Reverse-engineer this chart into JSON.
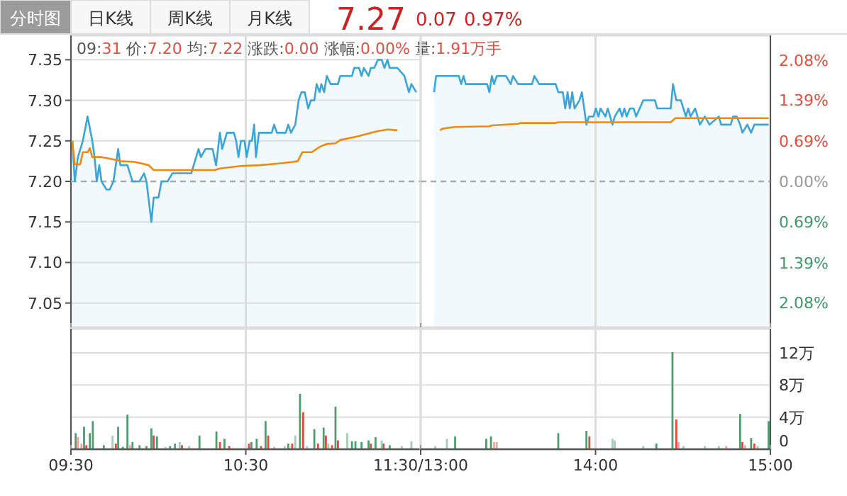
{
  "chart_data": [
    {
      "type": "other",
      "annotations": [
        "分时图",
        "日K线",
        "周K线",
        "月K线",
        "7.27",
        "0.07",
        "0.97%"
      ]
    },
    {
      "type": "line",
      "subtitle": "09:31 价:7.20 均:7.22 涨跌:0.00 涨幅:0.00% 量:1.91万手",
      "xlim": [
        9.5,
        11.5
      ],
      "xticks": [
        {
          "value": 9.5,
          "label": null
        },
        {
          "value": 10.5,
          "label": null
        },
        {
          "value": 11.5,
          "label": null
        }
      ],
      "ylim": [
        7.02,
        7.38
      ],
      "yticks": [
        7.05,
        {
          "value": 7.1,
          "label": "7.10"
        },
        7.15,
        {
          "value": 7.2,
          "label": "7.20"
        },
        7.25,
        {
          "value": 7.3,
          "label": "7.30"
        },
        7.35
      ],
      "tick_labels": "y",
      "grid": "y",
      "ref_lines": [
        {
          "axis": "y",
          "value": 7.2,
          "line_style": "dashed",
          "color": "#aaaaaa"
        },
        {
          "axis": "x",
          "value": 10.5,
          "color": "#dddddd"
        }
      ],
      "series": [
        {
          "type": "area",
          "color": "#3aa5d6",
          "x": [
            9.508,
            9.522,
            9.54,
            9.568,
            9.595,
            9.622,
            9.635,
            9.648,
            9.662,
            9.675,
            9.703,
            9.722,
            9.743,
            9.77,
            9.783,
            9.823,
            9.852,
            9.892,
            9.918,
            9.932,
            9.96,
            9.973,
            10.0,
            10.018,
            10.053,
            10.08,
            10.188,
            10.23,
            10.243,
            10.27,
            10.31,
            10.33,
            10.352,
            10.365,
            10.392,
            10.432,
            10.445,
            10.458,
            10.472,
            10.493,
            10.505,
            10.522,
            10.535,
            10.548,
            10.558,
            10.575,
            10.648,
            10.662,
            10.678,
            10.728,
            10.743,
            10.758,
            10.783,
            10.802,
            10.818,
            10.837,
            10.857,
            10.872,
            10.892,
            10.905,
            10.922,
            10.932,
            10.948,
            10.963,
            10.985,
            11.027,
            11.04,
            11.107,
            11.12,
            11.148,
            11.162,
            11.175,
            11.202,
            11.215,
            11.235,
            11.255,
            11.277,
            11.293,
            11.31,
            11.323,
            11.367,
            11.407,
            11.433,
            11.447,
            11.475
          ],
          "values": [
            7.25,
            7.2,
            7.23,
            7.25,
            7.28,
            7.25,
            7.23,
            7.2,
            7.22,
            7.2,
            7.19,
            7.19,
            7.2,
            7.24,
            7.22,
            7.22,
            7.2,
            7.2,
            7.21,
            7.2,
            7.15,
            7.18,
            7.18,
            7.2,
            7.2,
            7.21,
            7.21,
            7.24,
            7.23,
            7.24,
            7.24,
            7.22,
            7.26,
            7.24,
            7.26,
            7.26,
            7.25,
            7.23,
            7.25,
            7.25,
            7.23,
            7.25,
            7.25,
            7.27,
            7.23,
            7.26,
            7.26,
            7.27,
            7.26,
            7.26,
            7.27,
            7.26,
            7.27,
            7.3,
            7.31,
            7.31,
            7.29,
            7.3,
            7.3,
            7.32,
            7.31,
            7.32,
            7.31,
            7.33,
            7.32,
            7.32,
            7.33,
            7.33,
            7.34,
            7.34,
            7.33,
            7.34,
            7.33,
            7.34,
            7.34,
            7.35,
            7.35,
            7.34,
            7.35,
            7.34,
            7.34,
            7.33,
            7.31,
            7.32,
            7.31
          ]
        },
        {
          "type": "line",
          "color": "#f0890f",
          "x": [
            9.508,
            9.522,
            9.553,
            9.568,
            9.595,
            9.608,
            9.622,
            9.675,
            9.743,
            9.783,
            9.865,
            9.945,
            9.973,
            10.323,
            10.352,
            10.472,
            10.58,
            10.688,
            10.77,
            10.797,
            10.823,
            10.878,
            10.918,
            10.958,
            11.013,
            11.04,
            11.148,
            11.255,
            11.31,
            11.367
          ],
          "values": [
            7.25,
            7.221,
            7.221,
            7.236,
            7.236,
            7.241,
            7.23,
            7.23,
            7.227,
            7.225,
            7.224,
            7.22,
            7.214,
            7.214,
            7.216,
            7.219,
            7.22,
            7.222,
            7.224,
            7.225,
            7.236,
            7.236,
            7.242,
            7.246,
            7.247,
            7.251,
            7.256,
            7.262,
            7.264,
            7.263
          ]
        }
      ]
    },
    {
      "type": "line",
      "xlim": [
        13,
        15
      ],
      "xticks": [
        {
          "value": 13,
          "label": null
        },
        {
          "value": 14,
          "label": null
        },
        {
          "value": 15,
          "label": null
        }
      ],
      "ylim": [
        7.02,
        7.38
      ],
      "y2lim": [
        -2.5,
        2.5
      ],
      "y2ticks": [
        {
          "value": 2.08,
          "label": "2.08%"
        },
        {
          "value": 1.39,
          "label": "1.39%"
        },
        {
          "value": 0.69,
          "label": "0.69%"
        },
        {
          "value": 0,
          "label": "0.00%"
        },
        {
          "value": -0.69,
          "label": "0.69%"
        },
        {
          "value": -1.39,
          "label": "1.39%"
        },
        {
          "value": -2.08,
          "label": "2.08%"
        }
      ],
      "tick_labels": false,
      "grid": "y",
      "ref_lines": [
        {
          "axis": "y",
          "value": 7.2,
          "line_style": "dashed",
          "color": "#aaaaaa"
        },
        {
          "axis": "x",
          "value": 14,
          "color": "#dddddd"
        }
      ],
      "series": [
        {
          "type": "area",
          "color": "#3aa5d6",
          "x": [
            13.077,
            13.088,
            13.218,
            13.232,
            13.245,
            13.258,
            13.38,
            13.393,
            13.407,
            13.42,
            13.435,
            13.488,
            13.515,
            13.528,
            13.557,
            13.637,
            13.65,
            13.678,
            13.772,
            13.787,
            13.813,
            13.827,
            13.84,
            13.853,
            13.867,
            13.88,
            13.908,
            13.922,
            13.948,
            13.962,
            13.988,
            14.002,
            14.017,
            14.028,
            14.057,
            14.07,
            14.097,
            14.11,
            14.138,
            14.152,
            14.165,
            14.178,
            14.197,
            14.218,
            14.232,
            14.273,
            14.34,
            14.353,
            14.43,
            14.443,
            14.462,
            14.488,
            14.517,
            14.53,
            14.543,
            14.57,
            14.597,
            14.625,
            14.652,
            14.705,
            14.718,
            14.773,
            14.787,
            14.808,
            14.827,
            14.84,
            14.868,
            14.89,
            14.908,
            14.99
          ],
          "values": [
            7.31,
            7.33,
            7.33,
            7.32,
            7.33,
            7.32,
            7.32,
            7.31,
            7.33,
            7.32,
            7.33,
            7.33,
            7.32,
            7.33,
            7.32,
            7.32,
            7.33,
            7.32,
            7.32,
            7.31,
            7.31,
            7.29,
            7.31,
            7.29,
            7.31,
            7.29,
            7.3,
            7.31,
            7.27,
            7.28,
            7.28,
            7.29,
            7.28,
            7.29,
            7.28,
            7.29,
            7.27,
            7.28,
            7.29,
            7.28,
            7.29,
            7.28,
            7.29,
            7.29,
            7.28,
            7.3,
            7.3,
            7.29,
            7.29,
            7.32,
            7.3,
            7.3,
            7.28,
            7.29,
            7.28,
            7.29,
            7.27,
            7.28,
            7.27,
            7.28,
            7.27,
            7.27,
            7.28,
            7.28,
            7.27,
            7.26,
            7.27,
            7.26,
            7.27,
            7.27
          ]
        },
        {
          "type": "line",
          "color": "#f0890f",
          "x": [
            13.11,
            13.125,
            13.192,
            13.393,
            13.407,
            13.557,
            13.57,
            13.772,
            13.787,
            14.43,
            14.457,
            14.99
          ],
          "values": [
            7.263,
            7.265,
            7.267,
            7.268,
            7.269,
            7.271,
            7.272,
            7.272,
            7.273,
            7.273,
            7.278,
            7.278
          ]
        }
      ]
    },
    {
      "type": "bar",
      "xlim": [
        9.5,
        11.5
      ],
      "xticks": [
        {
          "value": 9.5,
          "label": "09:30"
        },
        {
          "value": 10.5,
          "label": "10:30"
        },
        {
          "value": 11.5,
          "label": "11:30/13:00"
        }
      ],
      "ylim": [
        0,
        15
      ],
      "yticks": [
        0,
        4,
        8,
        12
      ],
      "tick_labels": "x",
      "grid": "y",
      "ref_lines": [
        {
          "axis": "x",
          "value": 10.5,
          "color": "#dddddd"
        }
      ],
      "x": [
        9.527,
        9.54,
        9.56,
        9.575,
        9.588,
        9.608,
        9.625,
        9.688,
        9.738,
        9.757,
        9.77,
        9.797,
        9.823,
        9.838,
        9.852,
        9.892,
        9.932,
        9.96,
        9.973,
        9.992,
        10.04,
        10.067,
        10.095,
        10.122,
        10.135,
        10.175,
        10.235,
        10.332,
        10.352,
        10.378,
        10.405,
        10.518,
        10.532,
        10.562,
        10.587,
        10.613,
        10.628,
        10.662,
        10.722,
        10.743,
        10.765,
        10.783,
        10.81,
        10.828,
        10.85,
        10.892,
        10.913,
        10.945,
        10.958,
        10.972,
        10.993,
        11.013,
        11.027,
        11.08,
        11.107,
        11.127,
        11.162,
        11.202,
        11.215,
        11.242,
        11.277,
        11.288,
        11.323,
        11.392,
        11.447
      ],
      "values": [
        2.0,
        1.5,
        0.7,
        2.8,
        0.5,
        2.0,
        3.5,
        0.5,
        1.7,
        0.7,
        2.8,
        0.3,
        4.3,
        0.5,
        0.9,
        0.5,
        0.4,
        2.6,
        1.7,
        1.6,
        0.3,
        0.4,
        0.7,
        0.9,
        0.5,
        0.4,
        1.7,
        2.2,
        0.9,
        1.3,
        0.4,
        0.7,
        0.9,
        1.3,
        0.4,
        3.5,
        1.7,
        0.3,
        0.4,
        0.7,
        0.7,
        1.7,
        6.9,
        4.6,
        0.4,
        2.5,
        0.7,
        2.7,
        1.7,
        0.7,
        0.5,
        5.3,
        1.1,
        2.0,
        1.0,
        1.0,
        0.9,
        1.1,
        0.7,
        1.5,
        1.1,
        0.7,
        0.5,
        0.4,
        1.0
      ],
      "colors": [
        "#4f9d6e",
        "#f3a39b",
        "#f3a39b",
        "#4f9d6e",
        "#e04a3f",
        "#4f9d6e",
        "#4f9d6e",
        "#4f9d6e",
        "#a3cdb5",
        "#e04a3f",
        "#4f9d6e",
        "#4f9d6e",
        "#4f9d6e",
        "#f3a39b",
        "#4f9d6e",
        "#4f9d6e",
        "#4f9d6e",
        "#4f9d6e",
        "#e04a3f",
        "#4f9d6e",
        "#a3cdb5",
        "#4f9d6e",
        "#4f9d6e",
        "#a3cdb5",
        "#e04a3f",
        "#a3cdb5",
        "#4f9d6e",
        "#4f9d6e",
        "#e04a3f",
        "#4f9d6e",
        "#e04a3f",
        "#e04a3f",
        "#4f9d6e",
        "#4f9d6e",
        "#e04a3f",
        "#4f9d6e",
        "#e04a3f",
        "#a3cdb5",
        "#a3cdb5",
        "#4f9d6e",
        "#e04a3f",
        "#a3cdb5",
        "#4f9d6e",
        "#e04a3f",
        "#a3cdb5",
        "#4f9d6e",
        "#e04a3f",
        "#4f9d6e",
        "#e04a3f",
        "#a3cdb5",
        "#e04a3f",
        "#4f9d6e",
        "#e04a3f",
        "#a3cdb5",
        "#4f9d6e",
        "#4f9d6e",
        "#4f9d6e",
        "#4f9d6e",
        "#e04a3f",
        "#4f9d6e",
        "#a3cdb5",
        "#e04a3f",
        "#4f9d6e",
        "#a3cdb5",
        "#a3cdb5"
      ]
    },
    {
      "type": "bar",
      "xlim": [
        13,
        15
      ],
      "xticks": [
        {
          "value": 13,
          "label": null
        },
        {
          "value": 14,
          "label": "14:00"
        },
        {
          "value": 15,
          "label": "15:00"
        }
      ],
      "ylim": [
        0,
        15
      ],
      "yticks": [
        0,
        {
          "value": 4,
          "label": "4万"
        },
        {
          "value": 8,
          "label": "8万"
        },
        {
          "value": 12,
          "label": "12万"
        }
      ],
      "grid": "y",
      "ref_lines": [
        {
          "axis": "x",
          "value": 14,
          "color": "#dddddd"
        }
      ],
      "x": [
        13.083,
        13.15,
        13.197,
        13.375,
        13.402,
        13.42,
        13.435,
        13.787,
        13.948,
        13.965,
        14.097,
        14.11,
        14.273,
        14.348,
        14.44,
        14.462,
        14.475,
        14.503,
        14.625,
        14.705,
        14.747,
        14.827,
        14.84,
        14.855,
        14.89,
        14.908,
        14.927,
        14.99
      ],
      "values": [
        0.4,
        1.3,
        1.6,
        1.3,
        1.6,
        0.9,
        0.9,
        2.0,
        2.3,
        1.6,
        1.3,
        1.1,
        0.4,
        0.7,
        12.1,
        3.7,
        0.9,
        0.4,
        0.4,
        0.4,
        0.4,
        4.4,
        0.9,
        0.5,
        1.4,
        0.7,
        0.4,
        3.5
      ],
      "colors": [
        "#a3cdb5",
        "#a3cdb5",
        "#4f9d6e",
        "#4f9d6e",
        "#4f9d6e",
        "#f3a39b",
        "#f3a39b",
        "#4f9d6e",
        "#4f9d6e",
        "#e04a3f",
        "#a3cdb5",
        "#a3cdb5",
        "#a3cdb5",
        "#4f9d6e",
        "#4f9d6e",
        "#e04a3f",
        "#f3a39b",
        "#a3cdb5",
        "#a3cdb5",
        "#a3cdb5",
        "#f3a39b",
        "#4f9d6e",
        "#e04a3f",
        "#f3a39b",
        "#4f9d6e",
        "#e04a3f",
        "#a3cdb5",
        "#4f9d6e"
      ]
    }
  ]
}
